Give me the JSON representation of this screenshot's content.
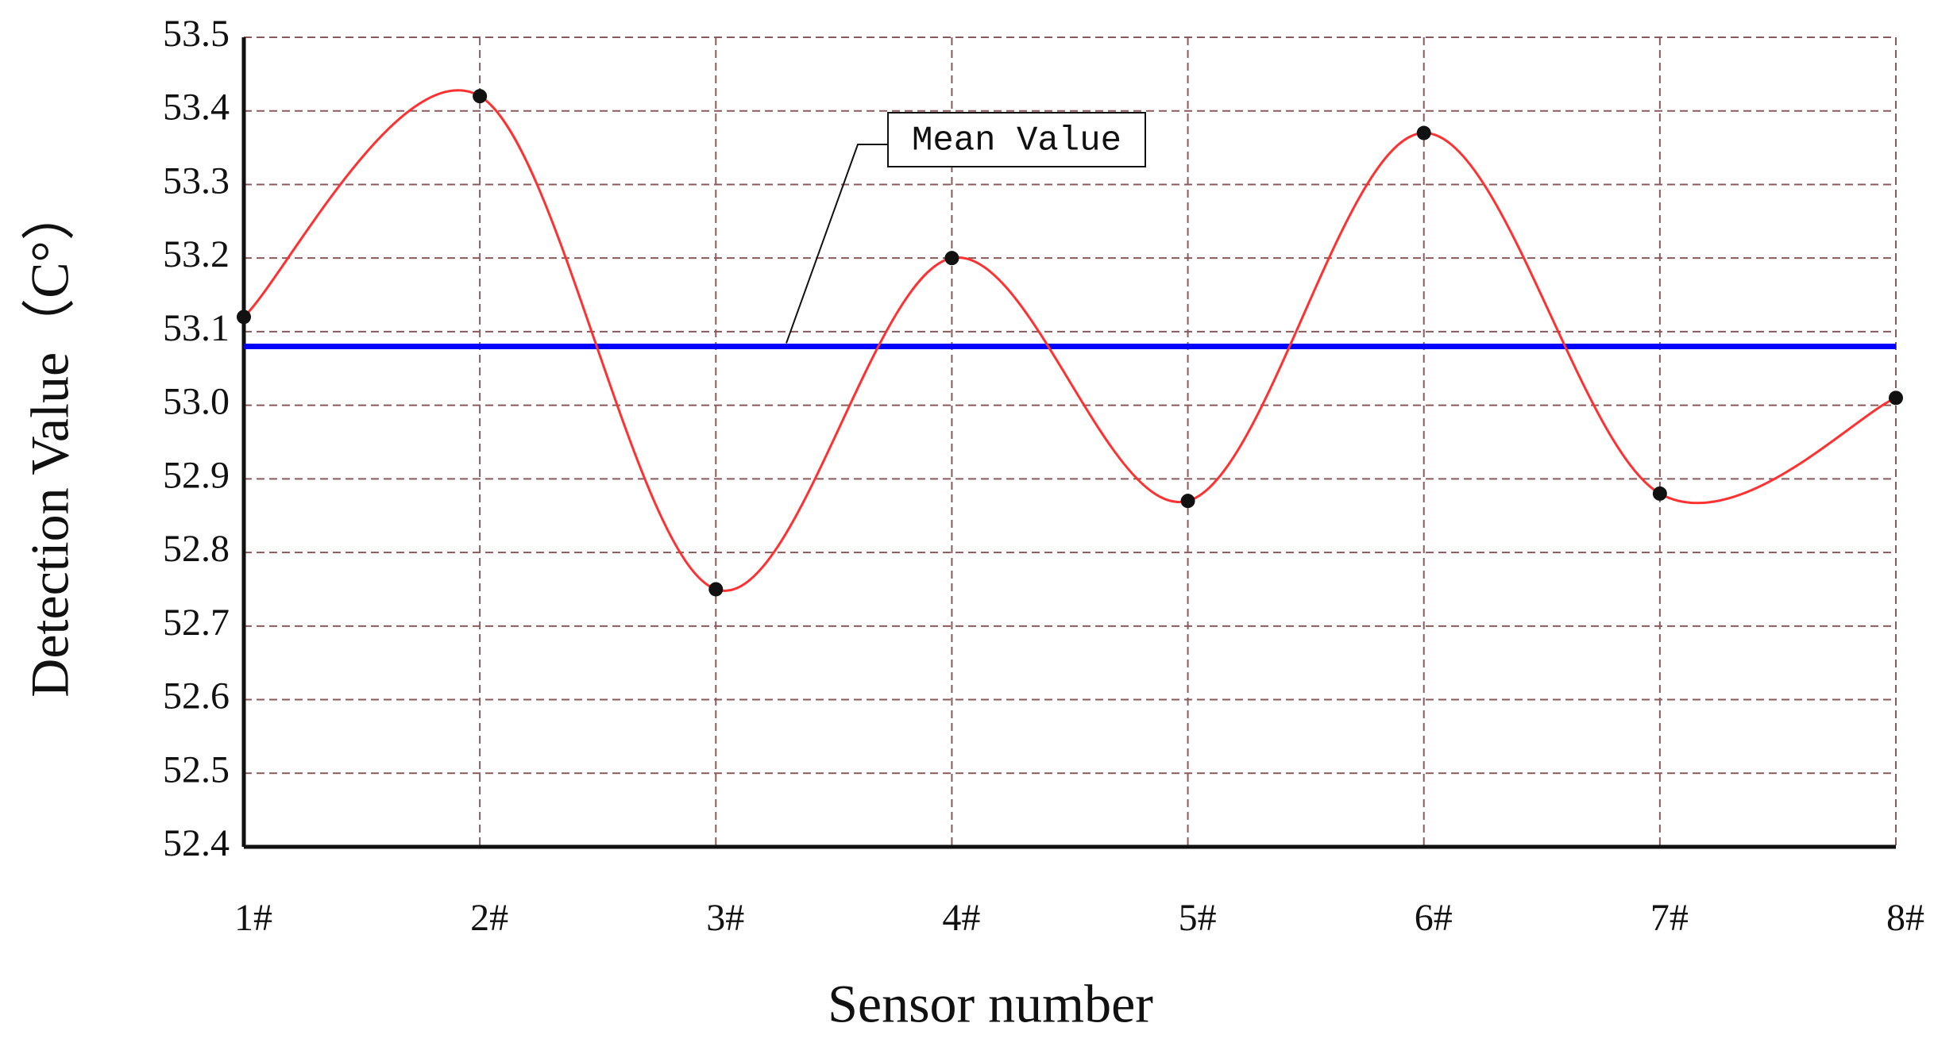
{
  "chart_data": {
    "type": "line",
    "x_label": "Sensor number",
    "y_label": "Detection Value（C°）",
    "categories": [
      "1#",
      "2#",
      "3#",
      "4#",
      "5#",
      "6#",
      "7#",
      "8#"
    ],
    "values": [
      53.12,
      53.42,
      52.75,
      53.2,
      52.87,
      53.37,
      52.88,
      53.01
    ],
    "color": "#ff3030",
    "marker_color": "#111111",
    "reference_line": {
      "label": "Mean Value",
      "value": 53.08,
      "color": "#0000ff"
    },
    "ylim": [
      52.4,
      53.5
    ],
    "yticks": [
      52.4,
      52.5,
      52.6,
      52.7,
      52.8,
      52.9,
      {
        "value": 53,
        "label": "53.0"
      },
      53.1,
      53.2,
      53.3,
      53.4,
      53.5
    ],
    "grid": true
  }
}
